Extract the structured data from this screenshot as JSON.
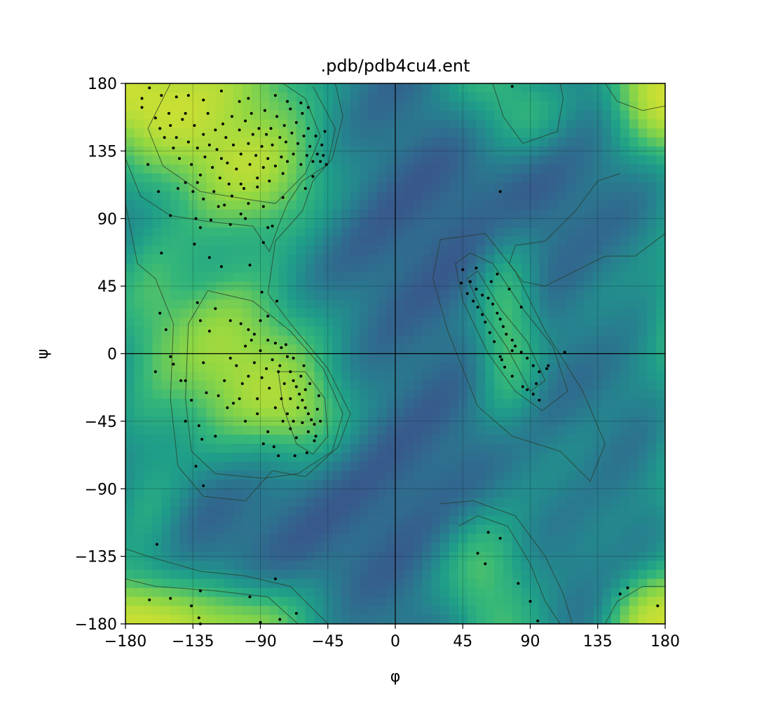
{
  "chart_data": {
    "type": "scatter",
    "title": ".pdb/pdb4cu4.ent",
    "xlabel": "φ",
    "ylabel": "ψ",
    "xlim": [
      -180,
      180
    ],
    "ylim": [
      -180,
      180
    ],
    "x_ticks": [
      -180,
      -135,
      -90,
      -45,
      0,
      45,
      90,
      135,
      180
    ],
    "y_ticks": [
      -180,
      -135,
      -90,
      -45,
      0,
      45,
      90,
      135,
      180
    ],
    "x_tick_labels": [
      "−180",
      "−135",
      "−90",
      "−45",
      "0",
      "45",
      "90",
      "135",
      "180"
    ],
    "y_tick_labels": [
      "−180",
      "−135",
      "−90",
      "−45",
      "0",
      "45",
      "90",
      "135",
      "180"
    ],
    "grid": true,
    "background": "viridis density heatmap with contour lines",
    "colors": {
      "low": "#440154",
      "mid": "#21918c",
      "high": "#fde725",
      "points": "#000000",
      "contour": "#2b3a26"
    },
    "points": [
      [
        -169,
        170
      ],
      [
        -169,
        164
      ],
      [
        -164,
        177
      ],
      [
        -160,
        157
      ],
      [
        -157,
        150
      ],
      [
        -154,
        144
      ],
      [
        -151,
        160
      ],
      [
        -150,
        152
      ],
      [
        -148,
        137
      ],
      [
        -146,
        144
      ],
      [
        -144,
        130
      ],
      [
        -142,
        156
      ],
      [
        -140,
        160
      ],
      [
        -138,
        141
      ],
      [
        -136,
        126
      ],
      [
        -134,
        152
      ],
      [
        -132,
        137
      ],
      [
        -130,
        119
      ],
      [
        -128,
        146
      ],
      [
        -127,
        131
      ],
      [
        -125,
        160
      ],
      [
        -124,
        139
      ],
      [
        -122,
        124
      ],
      [
        -120,
        149
      ],
      [
        -119,
        136
      ],
      [
        -117,
        117
      ],
      [
        -116,
        130
      ],
      [
        -115,
        153
      ],
      [
        -113,
        144
      ],
      [
        -112,
        127
      ],
      [
        -111,
        113
      ],
      [
        -109,
        158
      ],
      [
        -108,
        139
      ],
      [
        -106,
        123
      ],
      [
        -104,
        149
      ],
      [
        -103,
        133
      ],
      [
        -101,
        110
      ],
      [
        -100,
        155
      ],
      [
        -98,
        140
      ],
      [
        -97,
        126
      ],
      [
        -96,
        160
      ],
      [
        -95,
        146
      ],
      [
        -93,
        132
      ],
      [
        -92,
        117
      ],
      [
        -91,
        150
      ],
      [
        -89,
        138
      ],
      [
        -88,
        124
      ],
      [
        -87,
        162
      ],
      [
        -86,
        146
      ],
      [
        -85,
        130
      ],
      [
        -84,
        115
      ],
      [
        -83,
        150
      ],
      [
        -82,
        139
      ],
      [
        -80,
        125
      ],
      [
        -79,
        158
      ],
      [
        -77,
        144
      ],
      [
        -76,
        131
      ],
      [
        -75,
        120
      ],
      [
        -74,
        152
      ],
      [
        -73,
        141
      ],
      [
        -72,
        128
      ],
      [
        -70,
        163
      ],
      [
        -69,
        147
      ],
      [
        -68,
        133
      ],
      [
        -66,
        154
      ],
      [
        -65,
        140
      ],
      [
        -63,
        126
      ],
      [
        -62,
        160
      ],
      [
        -61,
        145
      ],
      [
        -59,
        132
      ],
      [
        -58,
        150
      ],
      [
        -57,
        138
      ],
      [
        -55,
        128
      ],
      [
        -53,
        145
      ],
      [
        -52,
        133
      ],
      [
        -50,
        128
      ],
      [
        -48,
        132
      ],
      [
        -46,
        126
      ],
      [
        -140,
        114
      ],
      [
        -135,
        108
      ],
      [
        -128,
        103
      ],
      [
        -118,
        98
      ],
      [
        -109,
        105
      ],
      [
        -98,
        100
      ],
      [
        -88,
        98
      ],
      [
        -85,
        84
      ],
      [
        -82,
        85
      ],
      [
        -123,
        89
      ],
      [
        -110,
        86
      ],
      [
        -100,
        90
      ],
      [
        -130,
        84
      ],
      [
        -133,
        90
      ],
      [
        -150,
        92
      ],
      [
        -145,
        110
      ],
      [
        -165,
        126
      ],
      [
        -158,
        108
      ],
      [
        -132,
        114
      ],
      [
        -121,
        108
      ],
      [
        -114,
        99
      ],
      [
        -103,
        93
      ],
      [
        -156,
        172
      ],
      [
        -146,
        171
      ],
      [
        -138,
        172
      ],
      [
        -128,
        169
      ],
      [
        -116,
        175
      ],
      [
        -104,
        168
      ],
      [
        -98,
        170
      ],
      [
        -80,
        172
      ],
      [
        -72,
        168
      ],
      [
        -63,
        167
      ],
      [
        -58,
        164
      ],
      [
        -49,
        139
      ],
      [
        -47,
        148
      ],
      [
        -55,
        118
      ],
      [
        -60,
        110
      ],
      [
        -75,
        104
      ],
      [
        -92,
        111
      ],
      [
        -103,
        113
      ],
      [
        -134,
        73
      ],
      [
        -116,
        58
      ],
      [
        -97,
        59
      ],
      [
        -88,
        74
      ],
      [
        -156,
        67
      ],
      [
        -124,
        64
      ],
      [
        -110,
        22
      ],
      [
        -103,
        20
      ],
      [
        -98,
        16
      ],
      [
        -94,
        13
      ],
      [
        -90,
        22
      ],
      [
        -85,
        9
      ],
      [
        -80,
        7
      ],
      [
        -76,
        4
      ],
      [
        -72,
        -2
      ],
      [
        -70,
        -12
      ],
      [
        -68,
        -18
      ],
      [
        -66,
        -22
      ],
      [
        -64,
        -27
      ],
      [
        -62,
        -31
      ],
      [
        -60,
        -36
      ],
      [
        -58,
        -40
      ],
      [
        -56,
        -44
      ],
      [
        -54,
        -47
      ],
      [
        -52,
        -37
      ],
      [
        -51,
        -28
      ],
      [
        -60,
        -24
      ],
      [
        -65,
        -36
      ],
      [
        -70,
        -30
      ],
      [
        -74,
        -20
      ],
      [
        -78,
        -12
      ],
      [
        -82,
        -4
      ],
      [
        -86,
        -10
      ],
      [
        -90,
        2
      ],
      [
        -94,
        -6
      ],
      [
        -98,
        -15
      ],
      [
        -102,
        -20
      ],
      [
        -106,
        -8
      ],
      [
        -110,
        -3
      ],
      [
        -114,
        -18
      ],
      [
        -118,
        -28
      ],
      [
        -100,
        5
      ],
      [
        -96,
        9
      ],
      [
        -89,
        -16
      ],
      [
        -84,
        -23
      ],
      [
        -80,
        -36
      ],
      [
        -75,
        -45
      ],
      [
        -70,
        -50
      ],
      [
        -66,
        -56
      ],
      [
        -62,
        -46
      ],
      [
        -58,
        -52
      ],
      [
        -54,
        -58
      ],
      [
        -50,
        -45
      ],
      [
        -53,
        -55
      ],
      [
        -59,
        -66
      ],
      [
        -67,
        -68
      ],
      [
        -78,
        -68
      ],
      [
        -85,
        -52
      ],
      [
        -92,
        -40
      ],
      [
        -104,
        -30
      ],
      [
        -108,
        -33
      ],
      [
        -112,
        -36
      ],
      [
        -126,
        -26
      ],
      [
        -131,
        -48
      ],
      [
        -129,
        -57
      ],
      [
        -133,
        -75
      ],
      [
        -128,
        -88
      ],
      [
        -140,
        -45
      ],
      [
        -160,
        -12
      ],
      [
        -150,
        -2
      ],
      [
        -140,
        -18
      ],
      [
        -136,
        -31
      ],
      [
        -120,
        -55
      ],
      [
        -100,
        -45
      ],
      [
        -92,
        -30
      ],
      [
        -88,
        -60
      ],
      [
        -81,
        -62
      ],
      [
        -76,
        -30
      ],
      [
        -72,
        -40
      ],
      [
        -68,
        -45
      ],
      [
        -63,
        -15
      ],
      [
        -57,
        -20
      ],
      [
        -85,
        25
      ],
      [
        -120,
        30
      ],
      [
        -124,
        15
      ],
      [
        -130,
        22
      ],
      [
        -153,
        16
      ],
      [
        -157,
        27
      ],
      [
        -132,
        34
      ],
      [
        -128,
        -6
      ],
      [
        -143,
        -18
      ],
      [
        -148,
        -7
      ],
      [
        -89,
        41
      ],
      [
        -79,
        35
      ],
      [
        -77,
        -8
      ],
      [
        -73,
        6
      ],
      [
        -68,
        -3
      ],
      [
        -61,
        -8
      ],
      [
        45,
        56
      ],
      [
        50,
        48
      ],
      [
        54,
        43
      ],
      [
        58,
        39
      ],
      [
        62,
        37
      ],
      [
        65,
        33
      ],
      [
        68,
        27
      ],
      [
        70,
        23
      ],
      [
        72,
        18
      ],
      [
        74,
        13
      ],
      [
        78,
        9
      ],
      [
        80,
        5
      ],
      [
        84,
        1
      ],
      [
        88,
        -3
      ],
      [
        92,
        -8
      ],
      [
        96,
        -12
      ],
      [
        101,
        -10
      ],
      [
        94,
        -20
      ],
      [
        92,
        -27
      ],
      [
        88,
        -24
      ],
      [
        85,
        -22
      ],
      [
        78,
        -15
      ],
      [
        73,
        -9
      ],
      [
        70,
        -2
      ],
      [
        66,
        8
      ],
      [
        63,
        14
      ],
      [
        60,
        21
      ],
      [
        58,
        26
      ],
      [
        55,
        31
      ],
      [
        52,
        35
      ],
      [
        48,
        40
      ],
      [
        44,
        47
      ],
      [
        54,
        57
      ],
      [
        64,
        48
      ],
      [
        68,
        53
      ],
      [
        76,
        43
      ],
      [
        84,
        31
      ],
      [
        113,
        1
      ],
      [
        96,
        -31
      ],
      [
        102,
        -8
      ],
      [
        78,
        2
      ],
      [
        71,
        -4
      ],
      [
        62,
        -119
      ],
      [
        55,
        -133
      ],
      [
        60,
        -140
      ],
      [
        70,
        -123
      ],
      [
        82,
        -153
      ],
      [
        90,
        -165
      ],
      [
        95,
        -178
      ],
      [
        150,
        -160
      ],
      [
        155,
        -156
      ],
      [
        175,
        -168
      ],
      [
        78,
        178
      ],
      [
        70,
        108
      ],
      [
        -164,
        -164
      ],
      [
        -150,
        -163
      ],
      [
        -136,
        -168
      ],
      [
        -130,
        -158
      ],
      [
        -131,
        -176
      ],
      [
        -130,
        -180
      ],
      [
        -97,
        -162
      ],
      [
        -90,
        -179
      ],
      [
        -80,
        -150
      ],
      [
        -77,
        -177
      ],
      [
        -66,
        -173
      ],
      [
        -159,
        -127
      ]
    ]
  }
}
